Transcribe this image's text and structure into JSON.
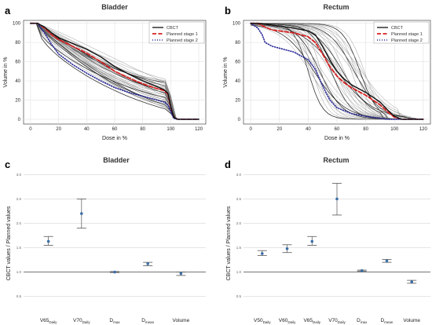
{
  "figure": {
    "panels": {
      "a": "a",
      "b": "b",
      "c": "c",
      "d": "d"
    }
  },
  "legend": {
    "items": [
      {
        "label": "CBCT",
        "color": "#222222",
        "style": "solid"
      },
      {
        "label": "Planned stage 1",
        "color": "#d62020",
        "style": "dashed"
      },
      {
        "label": "Planned stage 2",
        "color": "#2a2a9a",
        "style": "dotted"
      }
    ]
  },
  "chart_data": [
    {
      "panel": "a",
      "type": "line",
      "title": "Bladder",
      "xlabel": "Dose in %",
      "ylabel": "Volume in %",
      "xlim": [
        -5,
        125
      ],
      "ylim": [
        -5,
        103
      ],
      "xticks": [
        0,
        20,
        40,
        60,
        80,
        100,
        120
      ],
      "yticks": [
        0,
        20,
        40,
        60,
        80,
        100
      ],
      "grid": true,
      "legend_position": "top-right",
      "series": [
        {
          "name": "Planned stage 1",
          "x": [
            0,
            5,
            10,
            15,
            20,
            30,
            40,
            50,
            60,
            70,
            80,
            90,
            95,
            98,
            100,
            102,
            105,
            110,
            120
          ],
          "y": [
            100,
            100,
            95,
            88,
            83,
            76,
            69,
            60,
            50,
            43,
            37,
            32,
            30,
            26,
            12,
            2,
            0,
            0,
            0
          ]
        },
        {
          "name": "Planned stage 2",
          "x": [
            0,
            5,
            10,
            15,
            20,
            30,
            40,
            50,
            60,
            70,
            80,
            90,
            95,
            98,
            100,
            102,
            105,
            110,
            120
          ],
          "y": [
            100,
            100,
            90,
            78,
            68,
            57,
            48,
            40,
            33,
            28,
            24,
            20,
            18,
            15,
            8,
            1,
            0,
            0,
            0
          ]
        },
        {
          "name": "CBCT",
          "x": [
            0,
            5,
            10,
            15,
            20,
            30,
            40,
            50,
            60,
            70,
            80,
            90,
            95,
            98,
            100,
            102,
            105,
            110,
            120
          ],
          "y": [
            100,
            100,
            96,
            90,
            85,
            79,
            73,
            65,
            55,
            47,
            40,
            34,
            31,
            27,
            13,
            2,
            0,
            0,
            0
          ]
        }
      ]
    },
    {
      "panel": "b",
      "type": "line",
      "title": "Rectum",
      "xlabel": "Dose in %",
      "ylabel": "Volume in %",
      "xlim": [
        -5,
        125
      ],
      "ylim": [
        -5,
        103
      ],
      "xticks": [
        0,
        20,
        40,
        60,
        80,
        100,
        120
      ],
      "yticks": [
        0,
        20,
        40,
        60,
        80,
        100
      ],
      "grid": true,
      "legend_position": "top-right",
      "series": [
        {
          "name": "Planned stage 1",
          "x": [
            0,
            5,
            10,
            15,
            20,
            30,
            40,
            45,
            50,
            55,
            60,
            65,
            70,
            80,
            90,
            95,
            100,
            105,
            120
          ],
          "y": [
            100,
            100,
            96,
            93,
            92,
            90,
            86,
            80,
            68,
            55,
            45,
            38,
            33,
            25,
            15,
            8,
            2,
            0,
            0
          ]
        },
        {
          "name": "Planned stage 2",
          "x": [
            0,
            5,
            8,
            10,
            15,
            20,
            30,
            40,
            45,
            50,
            55,
            60,
            70,
            80,
            90,
            95,
            100,
            105,
            120
          ],
          "y": [
            100,
            95,
            88,
            80,
            76,
            74,
            70,
            62,
            52,
            35,
            20,
            12,
            6,
            3,
            1,
            0,
            0,
            0,
            0
          ]
        },
        {
          "name": "CBCT",
          "x": [
            0,
            5,
            10,
            15,
            20,
            30,
            40,
            45,
            50,
            55,
            60,
            65,
            70,
            80,
            90,
            95,
            100,
            105,
            120
          ],
          "y": [
            100,
            100,
            99,
            98,
            97,
            95,
            92,
            88,
            76,
            62,
            50,
            42,
            36,
            28,
            18,
            10,
            3,
            0,
            0
          ]
        }
      ]
    },
    {
      "panel": "c",
      "type": "scatter",
      "title": "Bladder",
      "ylabel": "CBCT values / Planned values",
      "ylim": [
        0.3,
        3.2
      ],
      "yticks": [
        0.5,
        1.0,
        1.5,
        2.0,
        2.5,
        3.0
      ],
      "ytick_labels": [
        "0.5",
        "1.0",
        "1.5",
        "2.0",
        "2.5",
        "3.0"
      ],
      "grid": true,
      "categories": [
        {
          "base": "V65",
          "sub": "Daily"
        },
        {
          "base": "V70",
          "sub": "Daily"
        },
        {
          "base": "D",
          "sub": "max"
        },
        {
          "base": "D",
          "sub": "mean"
        },
        {
          "base": "Volume",
          "sub": ""
        }
      ],
      "values": [
        1.63,
        2.2,
        1.0,
        1.17,
        0.97
      ],
      "errors_low": [
        1.55,
        1.9,
        0.99,
        1.13,
        0.93
      ],
      "errors_high": [
        1.73,
        2.5,
        1.01,
        1.2,
        1.0
      ]
    },
    {
      "panel": "d",
      "type": "scatter",
      "title": "Rectum",
      "ylabel": "CBCT values / Planned values",
      "ylim": [
        0.3,
        3.2
      ],
      "yticks": [
        0.5,
        1.0,
        1.5,
        2.0,
        2.5,
        3.0
      ],
      "ytick_labels": [
        "0.5",
        "1.0",
        "1.5",
        "2.0",
        "2.5",
        "3.0"
      ],
      "grid": true,
      "categories": [
        {
          "base": "V50",
          "sub": "Daily"
        },
        {
          "base": "V60",
          "sub": "Daily"
        },
        {
          "base": "V65",
          "sub": "Daily"
        },
        {
          "base": "V70",
          "sub": "Daily"
        },
        {
          "base": "D",
          "sub": "max"
        },
        {
          "base": "D",
          "sub": "mean"
        },
        {
          "base": "Volume",
          "sub": ""
        }
      ],
      "values": [
        1.38,
        1.48,
        1.63,
        2.5,
        1.03,
        1.23,
        0.8
      ],
      "errors_low": [
        1.34,
        1.4,
        1.55,
        2.17,
        1.02,
        1.2,
        0.77
      ],
      "errors_high": [
        1.44,
        1.56,
        1.73,
        2.82,
        1.04,
        1.26,
        0.83
      ]
    }
  ]
}
